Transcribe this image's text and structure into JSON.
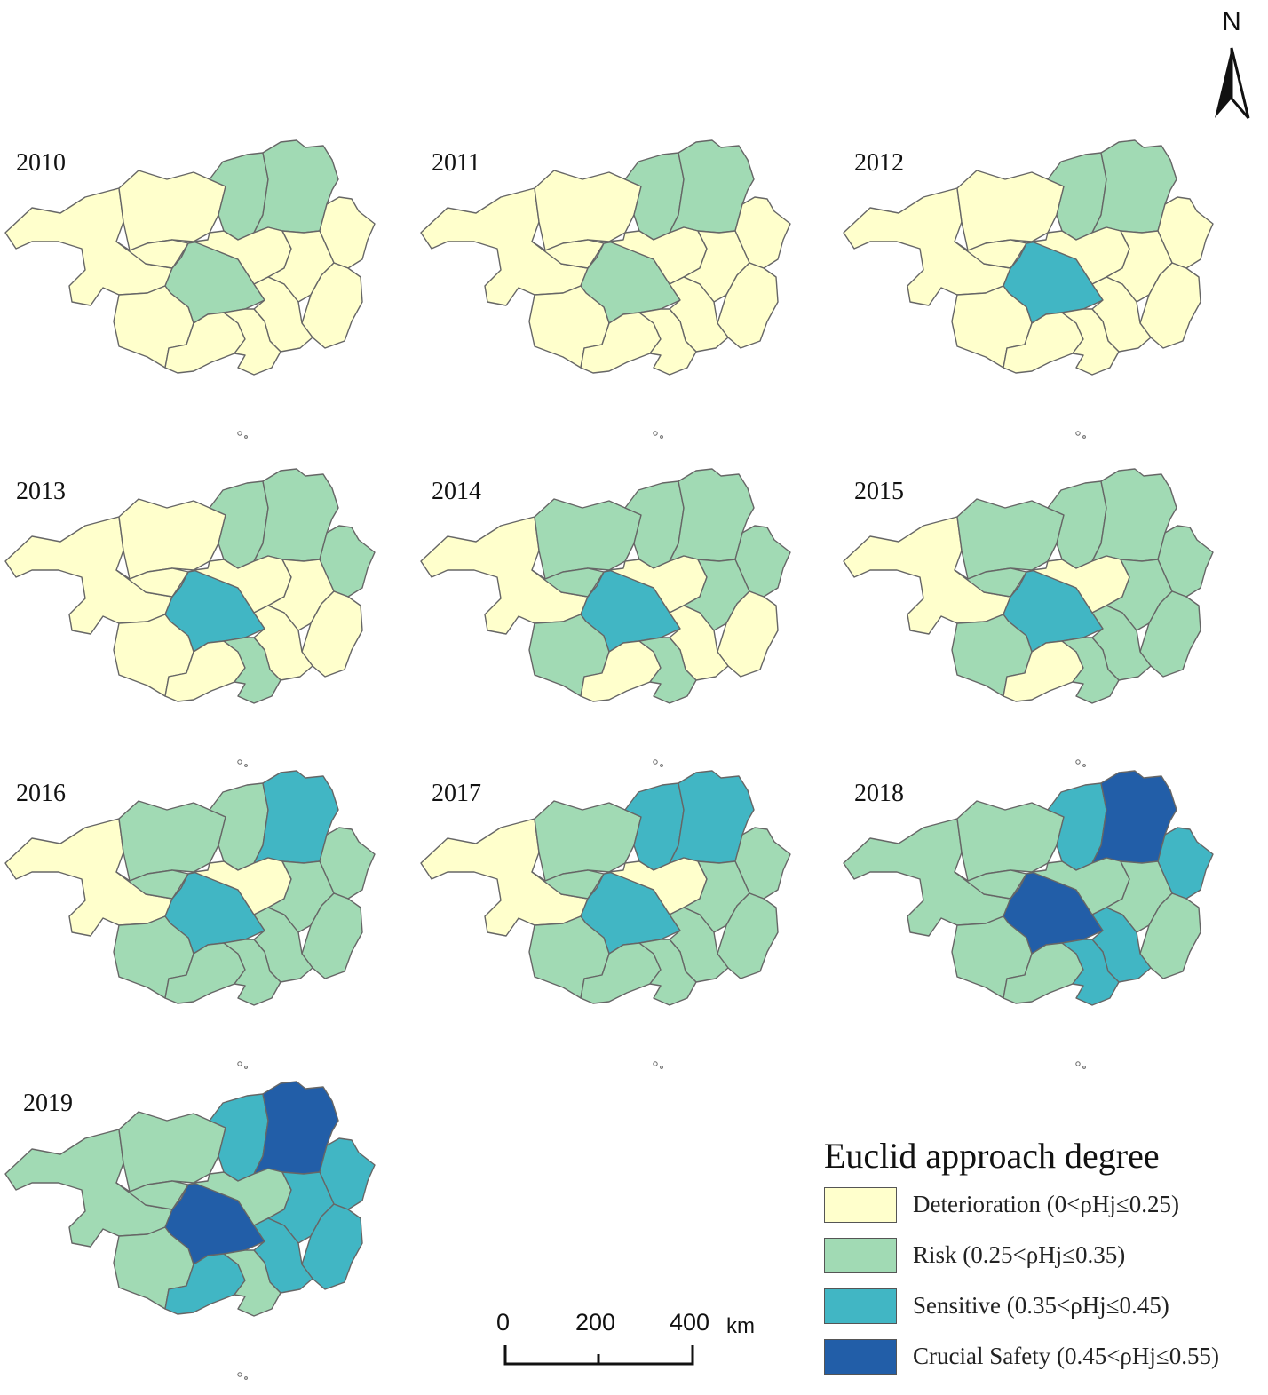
{
  "colors": {
    "deterioration": "#ffffcc",
    "risk": "#a1dab4",
    "sensitive": "#41b6c4",
    "crucial_safety": "#225ea8",
    "border": "#666666"
  },
  "north_arrow": {
    "label": "N"
  },
  "maps": [
    {
      "year": "2010",
      "classes": [
        "deterioration",
        "deterioration",
        "deterioration",
        "risk",
        "risk",
        "deterioration",
        "risk",
        "deterioration",
        "deterioration",
        "deterioration",
        "deterioration",
        "deterioration",
        "deterioration",
        "deterioration"
      ]
    },
    {
      "year": "2011",
      "classes": [
        "deterioration",
        "deterioration",
        "deterioration",
        "risk",
        "risk",
        "deterioration",
        "risk",
        "deterioration",
        "deterioration",
        "deterioration",
        "deterioration",
        "deterioration",
        "deterioration",
        "deterioration"
      ]
    },
    {
      "year": "2012",
      "classes": [
        "deterioration",
        "deterioration",
        "deterioration",
        "risk",
        "risk",
        "deterioration",
        "sensitive",
        "deterioration",
        "deterioration",
        "deterioration",
        "deterioration",
        "deterioration",
        "deterioration",
        "deterioration"
      ]
    },
    {
      "year": "2013",
      "classes": [
        "deterioration",
        "deterioration",
        "deterioration",
        "risk",
        "risk",
        "risk",
        "sensitive",
        "deterioration",
        "deterioration",
        "deterioration",
        "deterioration",
        "deterioration",
        "deterioration",
        "risk"
      ]
    },
    {
      "year": "2014",
      "classes": [
        "deterioration",
        "risk",
        "risk",
        "risk",
        "risk",
        "risk",
        "sensitive",
        "deterioration",
        "risk",
        "deterioration",
        "deterioration",
        "risk",
        "deterioration",
        "risk"
      ]
    },
    {
      "year": "2015",
      "classes": [
        "deterioration",
        "risk",
        "risk",
        "risk",
        "risk",
        "risk",
        "sensitive",
        "deterioration",
        "risk",
        "risk",
        "risk",
        "risk",
        "deterioration",
        "risk"
      ]
    },
    {
      "year": "2016",
      "classes": [
        "deterioration",
        "risk",
        "risk",
        "risk",
        "sensitive",
        "risk",
        "sensitive",
        "deterioration",
        "risk",
        "risk",
        "risk",
        "risk",
        "risk",
        "risk"
      ]
    },
    {
      "year": "2017",
      "classes": [
        "deterioration",
        "risk",
        "risk",
        "sensitive",
        "sensitive",
        "risk",
        "sensitive",
        "deterioration",
        "risk",
        "risk",
        "risk",
        "risk",
        "risk",
        "risk"
      ]
    },
    {
      "year": "2018",
      "classes": [
        "risk",
        "risk",
        "risk",
        "sensitive",
        "crucial_safety",
        "sensitive",
        "crucial_safety",
        "risk",
        "risk",
        "risk",
        "sensitive",
        "risk",
        "risk",
        "sensitive"
      ]
    },
    {
      "year": "2019",
      "classes": [
        "risk",
        "risk",
        "risk",
        "sensitive",
        "crucial_safety",
        "sensitive",
        "crucial_safety",
        "risk",
        "sensitive",
        "sensitive",
        "sensitive",
        "risk",
        "sensitive",
        "risk"
      ]
    }
  ],
  "legend": {
    "title": "Euclid approach degree",
    "items": [
      {
        "key": "deterioration",
        "label": "Deterioration (0<ρHj≤0.25)"
      },
      {
        "key": "risk",
        "label": "Risk (0.25<ρHj≤0.35)"
      },
      {
        "key": "sensitive",
        "label": "Sensitive (0.35<ρHj≤0.45)"
      },
      {
        "key": "crucial_safety",
        "label": "Crucial Safety (0.45<ρHj≤0.55)"
      }
    ]
  },
  "scale_bar": {
    "ticks": [
      "0",
      "200",
      "400"
    ],
    "unit": "km"
  }
}
